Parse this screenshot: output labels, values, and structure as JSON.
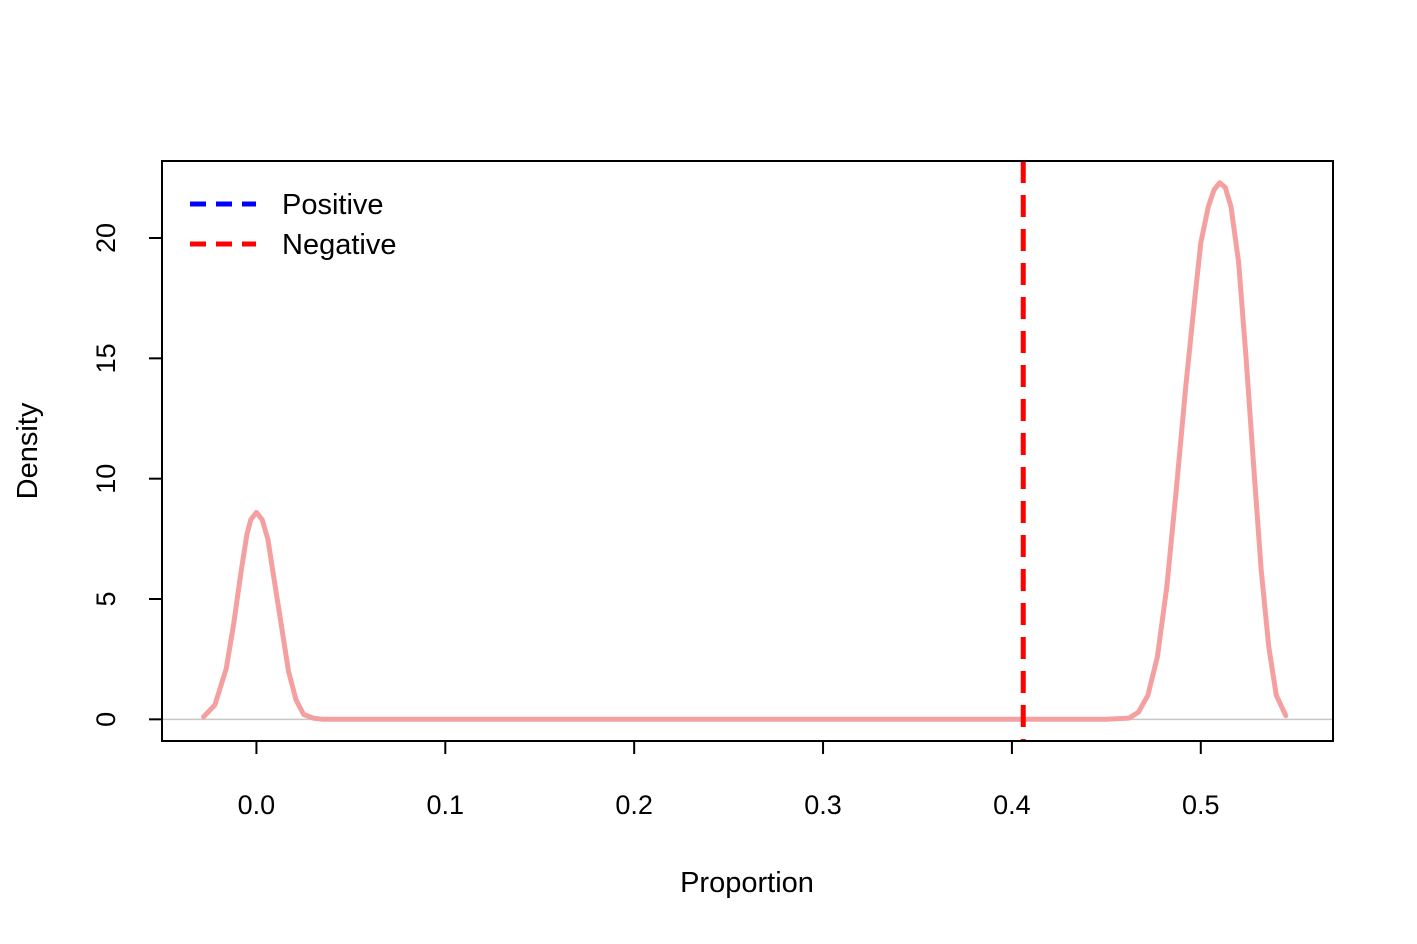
{
  "chart_data": {
    "type": "line",
    "title": "",
    "xlabel": "Proportion",
    "ylabel": "Density",
    "xlim": [
      -0.05,
      0.57
    ],
    "ylim": [
      -0.9,
      23.2
    ],
    "x_ticks": [
      0.0,
      0.1,
      0.2,
      0.3,
      0.4,
      0.5
    ],
    "x_tick_labels": [
      "0.0",
      "0.1",
      "0.2",
      "0.3",
      "0.4",
      "0.5"
    ],
    "y_ticks": [
      0,
      5,
      10,
      15,
      20
    ],
    "y_tick_labels": [
      "0",
      "5",
      "10",
      "15",
      "20"
    ],
    "baseline": 0,
    "grid": false,
    "legend": {
      "position": "top-left",
      "entries": [
        {
          "label": "Positive",
          "color": "#0000ff",
          "style": "dashed"
        },
        {
          "label": "Negative",
          "color": "#ff0000",
          "style": "dashed"
        }
      ]
    },
    "series": [
      {
        "color": "#f4a0a0",
        "x": [
          -0.028,
          -0.022,
          -0.016,
          -0.012,
          -0.008,
          -0.005,
          -0.003,
          0.0,
          0.003,
          0.006,
          0.009,
          0.013,
          0.017,
          0.021,
          0.025,
          0.03,
          0.035,
          0.1,
          0.2,
          0.3,
          0.4,
          0.45,
          0.462,
          0.467,
          0.472,
          0.477,
          0.482,
          0.487,
          0.492,
          0.497,
          0.5,
          0.504,
          0.507,
          0.51,
          0.513,
          0.516,
          0.52,
          0.524,
          0.528,
          0.532,
          0.536,
          0.54,
          0.545
        ],
        "y": [
          0.1,
          0.6,
          2.1,
          4.0,
          6.2,
          7.7,
          8.3,
          8.6,
          8.3,
          7.5,
          6.0,
          4.0,
          2.0,
          0.8,
          0.2,
          0.05,
          0.0,
          0.0,
          0.0,
          0.0,
          0.0,
          0.0,
          0.05,
          0.3,
          1.0,
          2.6,
          5.5,
          9.5,
          13.8,
          17.6,
          19.8,
          21.3,
          22.0,
          22.3,
          22.1,
          21.3,
          19.0,
          15.0,
          10.5,
          6.2,
          3.0,
          1.0,
          0.15
        ]
      }
    ],
    "vlines": [
      {
        "x": 0.406,
        "color": "#ff0000",
        "style": "dashed"
      }
    ]
  }
}
